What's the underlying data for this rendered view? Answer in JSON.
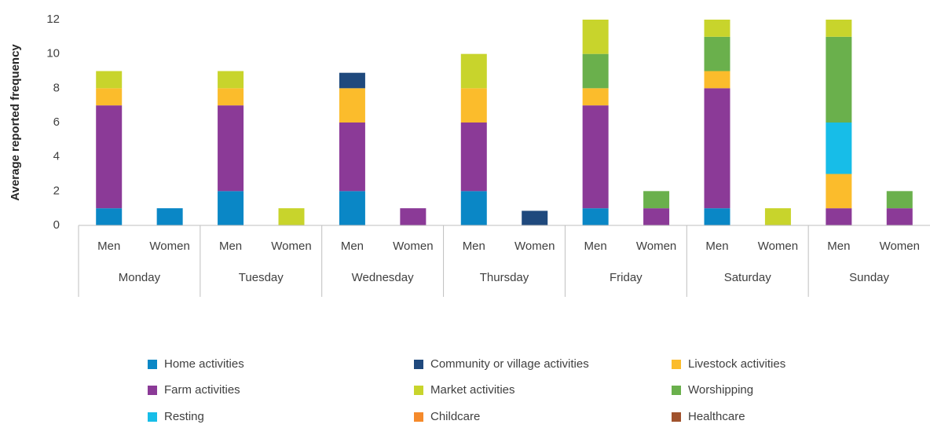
{
  "chart_data": {
    "type": "stacked_bar",
    "y_label": "Average reported frequency",
    "groups": [
      "Monday",
      "Tuesday",
      "Wednesday",
      "Thursday",
      "Friday",
      "Saturday",
      "Sunday"
    ],
    "categories": [
      "Men",
      "Women",
      "Men",
      "Women",
      "Men",
      "Women",
      "Men",
      "Women",
      "Men",
      "Women",
      "Men",
      "Women",
      "Men",
      "Women"
    ],
    "ylim": [
      0,
      12
    ],
    "yticks": [
      0,
      2,
      4,
      6,
      8,
      10,
      12
    ],
    "grid": false,
    "legend": "bottom",
    "series": [
      {
        "name": "Home activities",
        "color": "#0a87c6",
        "values": [
          1,
          1,
          2,
          0,
          2,
          0,
          2,
          0,
          1,
          0,
          1,
          0,
          0,
          0
        ]
      },
      {
        "name": "Farm activities",
        "color": "#8b3a97",
        "values": [
          6,
          0,
          5,
          0,
          4,
          1,
          4,
          0,
          6,
          1,
          7,
          0,
          1,
          1
        ]
      },
      {
        "name": "Livestock activities",
        "color": "#fbbc2c",
        "values": [
          1,
          0,
          1,
          0,
          2,
          0,
          2,
          0,
          1,
          0,
          1,
          0,
          2,
          0
        ]
      },
      {
        "name": "Resting",
        "color": "#17bde8",
        "values": [
          0,
          0,
          0,
          0,
          0,
          0,
          0,
          0,
          0,
          0,
          0,
          0,
          3,
          0
        ]
      },
      {
        "name": "Worshipping",
        "color": "#6ab04c",
        "values": [
          0,
          0,
          0,
          0,
          0,
          0,
          0,
          0,
          2,
          1,
          2,
          0,
          5,
          1
        ]
      },
      {
        "name": "Market activities",
        "color": "#c8d42c",
        "values": [
          1,
          0,
          1,
          1,
          0,
          0,
          2,
          0,
          2,
          0,
          1,
          1,
          1,
          0
        ]
      },
      {
        "name": "Community or village activities",
        "color": "#1f497d",
        "values": [
          0,
          0,
          0,
          0,
          0.9,
          0,
          0,
          0.85,
          0,
          0,
          0,
          0,
          0,
          0
        ]
      },
      {
        "name": "Childcare",
        "color": "#f58a2b",
        "values": [
          0,
          0,
          0,
          0,
          0,
          0,
          0,
          0,
          0,
          0,
          0,
          0,
          0,
          0
        ]
      },
      {
        "name": "Healthcare",
        "color": "#a0522d",
        "values": [
          0,
          0,
          0,
          0,
          0,
          0,
          0,
          0,
          0,
          0,
          0,
          0,
          0,
          0
        ]
      }
    ]
  }
}
